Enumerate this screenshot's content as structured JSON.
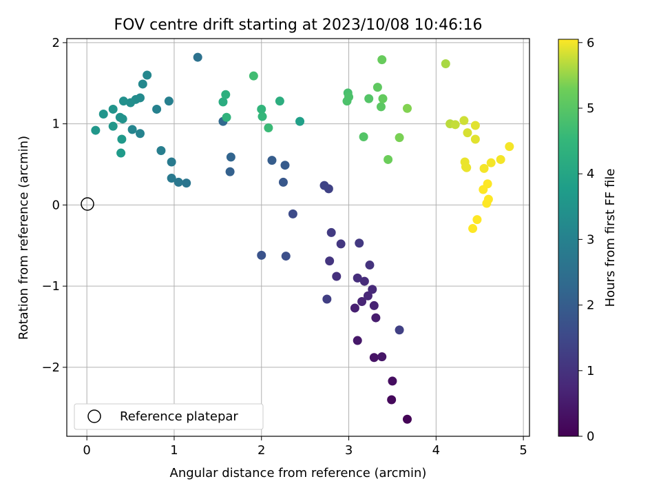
{
  "chart_data": {
    "type": "scatter",
    "title": "FOV centre drift starting at 2023/10/08 10:46:16",
    "xlabel": "Angular distance from reference (arcmin)",
    "ylabel": "Rotation from reference (arcmin)",
    "xlim": [
      -0.23,
      5.07
    ],
    "ylim": [
      -2.85,
      2.05
    ],
    "x_ticks": [
      "0",
      "1",
      "2",
      "3",
      "4",
      "5"
    ],
    "y_ticks": [
      "−2",
      "−1",
      "0",
      "1",
      "2"
    ],
    "grid": true,
    "legend": {
      "label": "Reference platepar",
      "position": "lower-left"
    },
    "reference_point": {
      "x": 0,
      "y": 0
    },
    "colorbar": {
      "label": "Hours from first FF file",
      "range": [
        0,
        6.05
      ],
      "ticks": [
        "0",
        "1",
        "2",
        "3",
        "4",
        "5",
        "6"
      ],
      "colormap": "viridis"
    },
    "points": [
      {
        "x": 3.67,
        "y": -2.64,
        "c": 0.05
      },
      {
        "x": 3.49,
        "y": -2.4,
        "c": 0.15
      },
      {
        "x": 3.5,
        "y": -2.17,
        "c": 0.25
      },
      {
        "x": 3.29,
        "y": -1.88,
        "c": 0.35
      },
      {
        "x": 3.38,
        "y": -1.87,
        "c": 0.4
      },
      {
        "x": 3.1,
        "y": -1.67,
        "c": 0.45
      },
      {
        "x": 3.31,
        "y": -1.39,
        "c": 0.55
      },
      {
        "x": 3.07,
        "y": -1.27,
        "c": 0.6
      },
      {
        "x": 3.29,
        "y": -1.24,
        "c": 0.65
      },
      {
        "x": 3.15,
        "y": -1.19,
        "c": 0.7
      },
      {
        "x": 3.22,
        "y": -1.12,
        "c": 0.75
      },
      {
        "x": 3.27,
        "y": -1.04,
        "c": 0.8
      },
      {
        "x": 3.18,
        "y": -0.94,
        "c": 0.85
      },
      {
        "x": 3.1,
        "y": -0.9,
        "c": 0.9
      },
      {
        "x": 2.86,
        "y": -0.88,
        "c": 0.95
      },
      {
        "x": 3.24,
        "y": -0.74,
        "c": 1.0
      },
      {
        "x": 2.78,
        "y": -0.69,
        "c": 1.05
      },
      {
        "x": 2.91,
        "y": -0.48,
        "c": 1.1
      },
      {
        "x": 3.12,
        "y": -0.47,
        "c": 1.15
      },
      {
        "x": 2.8,
        "y": -0.34,
        "c": 1.2
      },
      {
        "x": 2.75,
        "y": -1.16,
        "c": 1.25
      },
      {
        "x": 3.58,
        "y": -1.54,
        "c": 1.3
      },
      {
        "x": 2.77,
        "y": 0.2,
        "c": 1.35
      },
      {
        "x": 2.72,
        "y": 0.24,
        "c": 1.4
      },
      {
        "x": 2.36,
        "y": -0.11,
        "c": 1.55
      },
      {
        "x": 2.28,
        "y": -0.63,
        "c": 1.65
      },
      {
        "x": 2.0,
        "y": -0.62,
        "c": 1.75
      },
      {
        "x": 2.25,
        "y": 0.28,
        "c": 1.85
      },
      {
        "x": 2.27,
        "y": 0.49,
        "c": 1.95
      },
      {
        "x": 2.12,
        "y": 0.55,
        "c": 2.0
      },
      {
        "x": 1.64,
        "y": 0.41,
        "c": 2.1
      },
      {
        "x": 1.65,
        "y": 0.59,
        "c": 2.2
      },
      {
        "x": 1.56,
        "y": 1.03,
        "c": 2.3
      },
      {
        "x": 1.27,
        "y": 1.82,
        "c": 2.55
      },
      {
        "x": 1.14,
        "y": 0.27,
        "c": 2.65
      },
      {
        "x": 1.05,
        "y": 0.28,
        "c": 2.7
      },
      {
        "x": 0.97,
        "y": 0.33,
        "c": 2.75
      },
      {
        "x": 0.97,
        "y": 0.53,
        "c": 2.8
      },
      {
        "x": 0.85,
        "y": 0.67,
        "c": 2.9
      },
      {
        "x": 0.94,
        "y": 1.28,
        "c": 2.95
      },
      {
        "x": 0.8,
        "y": 1.18,
        "c": 3.0
      },
      {
        "x": 0.61,
        "y": 0.88,
        "c": 3.05
      },
      {
        "x": 0.52,
        "y": 0.93,
        "c": 3.1
      },
      {
        "x": 0.69,
        "y": 1.6,
        "c": 3.15
      },
      {
        "x": 0.64,
        "y": 1.49,
        "c": 3.2
      },
      {
        "x": 0.61,
        "y": 1.32,
        "c": 3.25
      },
      {
        "x": 0.56,
        "y": 1.3,
        "c": 3.3
      },
      {
        "x": 0.5,
        "y": 1.26,
        "c": 3.35
      },
      {
        "x": 0.42,
        "y": 1.28,
        "c": 3.4
      },
      {
        "x": 0.38,
        "y": 1.08,
        "c": 3.45
      },
      {
        "x": 0.41,
        "y": 1.06,
        "c": 3.45
      },
      {
        "x": 0.3,
        "y": 1.18,
        "c": 3.5
      },
      {
        "x": 0.19,
        "y": 1.12,
        "c": 3.55
      },
      {
        "x": 0.1,
        "y": 0.92,
        "c": 3.6
      },
      {
        "x": 0.3,
        "y": 0.97,
        "c": 3.6
      },
      {
        "x": 0.4,
        "y": 0.81,
        "c": 3.65
      },
      {
        "x": 0.39,
        "y": 0.64,
        "c": 3.7
      },
      {
        "x": 2.44,
        "y": 1.03,
        "c": 3.85
      },
      {
        "x": 2.21,
        "y": 1.28,
        "c": 4.25
      },
      {
        "x": 1.56,
        "y": 1.27,
        "c": 4.2
      },
      {
        "x": 1.59,
        "y": 1.36,
        "c": 4.3
      },
      {
        "x": 1.6,
        "y": 1.08,
        "c": 4.4
      },
      {
        "x": 2.0,
        "y": 1.18,
        "c": 4.45
      },
      {
        "x": 2.01,
        "y": 1.09,
        "c": 4.5
      },
      {
        "x": 2.08,
        "y": 0.95,
        "c": 4.6
      },
      {
        "x": 1.91,
        "y": 1.59,
        "c": 4.7
      },
      {
        "x": 2.99,
        "y": 1.38,
        "c": 4.8
      },
      {
        "x": 2.98,
        "y": 1.28,
        "c": 4.85
      },
      {
        "x": 3.0,
        "y": 1.33,
        "c": 4.85
      },
      {
        "x": 3.23,
        "y": 1.31,
        "c": 4.95
      },
      {
        "x": 3.17,
        "y": 0.84,
        "c": 4.95
      },
      {
        "x": 3.37,
        "y": 1.21,
        "c": 5.05
      },
      {
        "x": 3.33,
        "y": 1.45,
        "c": 5.1
      },
      {
        "x": 3.39,
        "y": 1.31,
        "c": 5.15
      },
      {
        "x": 3.38,
        "y": 1.79,
        "c": 5.2
      },
      {
        "x": 3.45,
        "y": 0.56,
        "c": 5.25
      },
      {
        "x": 3.58,
        "y": 0.83,
        "c": 5.35
      },
      {
        "x": 3.67,
        "y": 1.19,
        "c": 5.4
      },
      {
        "x": 4.11,
        "y": 1.74,
        "c": 5.6
      },
      {
        "x": 4.16,
        "y": 1.0,
        "c": 5.7
      },
      {
        "x": 4.22,
        "y": 0.99,
        "c": 5.75
      },
      {
        "x": 4.32,
        "y": 1.04,
        "c": 5.8
      },
      {
        "x": 4.36,
        "y": 0.89,
        "c": 5.85
      },
      {
        "x": 4.45,
        "y": 0.98,
        "c": 5.9
      },
      {
        "x": 4.45,
        "y": 0.81,
        "c": 5.9
      },
      {
        "x": 4.33,
        "y": 0.53,
        "c": 5.95
      },
      {
        "x": 4.35,
        "y": 0.46,
        "c": 5.95
      },
      {
        "x": 4.34,
        "y": 0.47,
        "c": 5.95
      },
      {
        "x": 4.55,
        "y": 0.45,
        "c": 6.0
      },
      {
        "x": 4.63,
        "y": 0.52,
        "c": 6.0
      },
      {
        "x": 4.74,
        "y": 0.56,
        "c": 6.0
      },
      {
        "x": 4.84,
        "y": 0.72,
        "c": 6.0
      },
      {
        "x": 4.59,
        "y": 0.26,
        "c": 6.05
      },
      {
        "x": 4.54,
        "y": 0.19,
        "c": 6.05
      },
      {
        "x": 4.6,
        "y": 0.07,
        "c": 6.05
      },
      {
        "x": 4.58,
        "y": 0.02,
        "c": 6.05
      },
      {
        "x": 4.47,
        "y": -0.18,
        "c": 6.05
      },
      {
        "x": 4.42,
        "y": -0.29,
        "c": 6.05
      }
    ]
  }
}
